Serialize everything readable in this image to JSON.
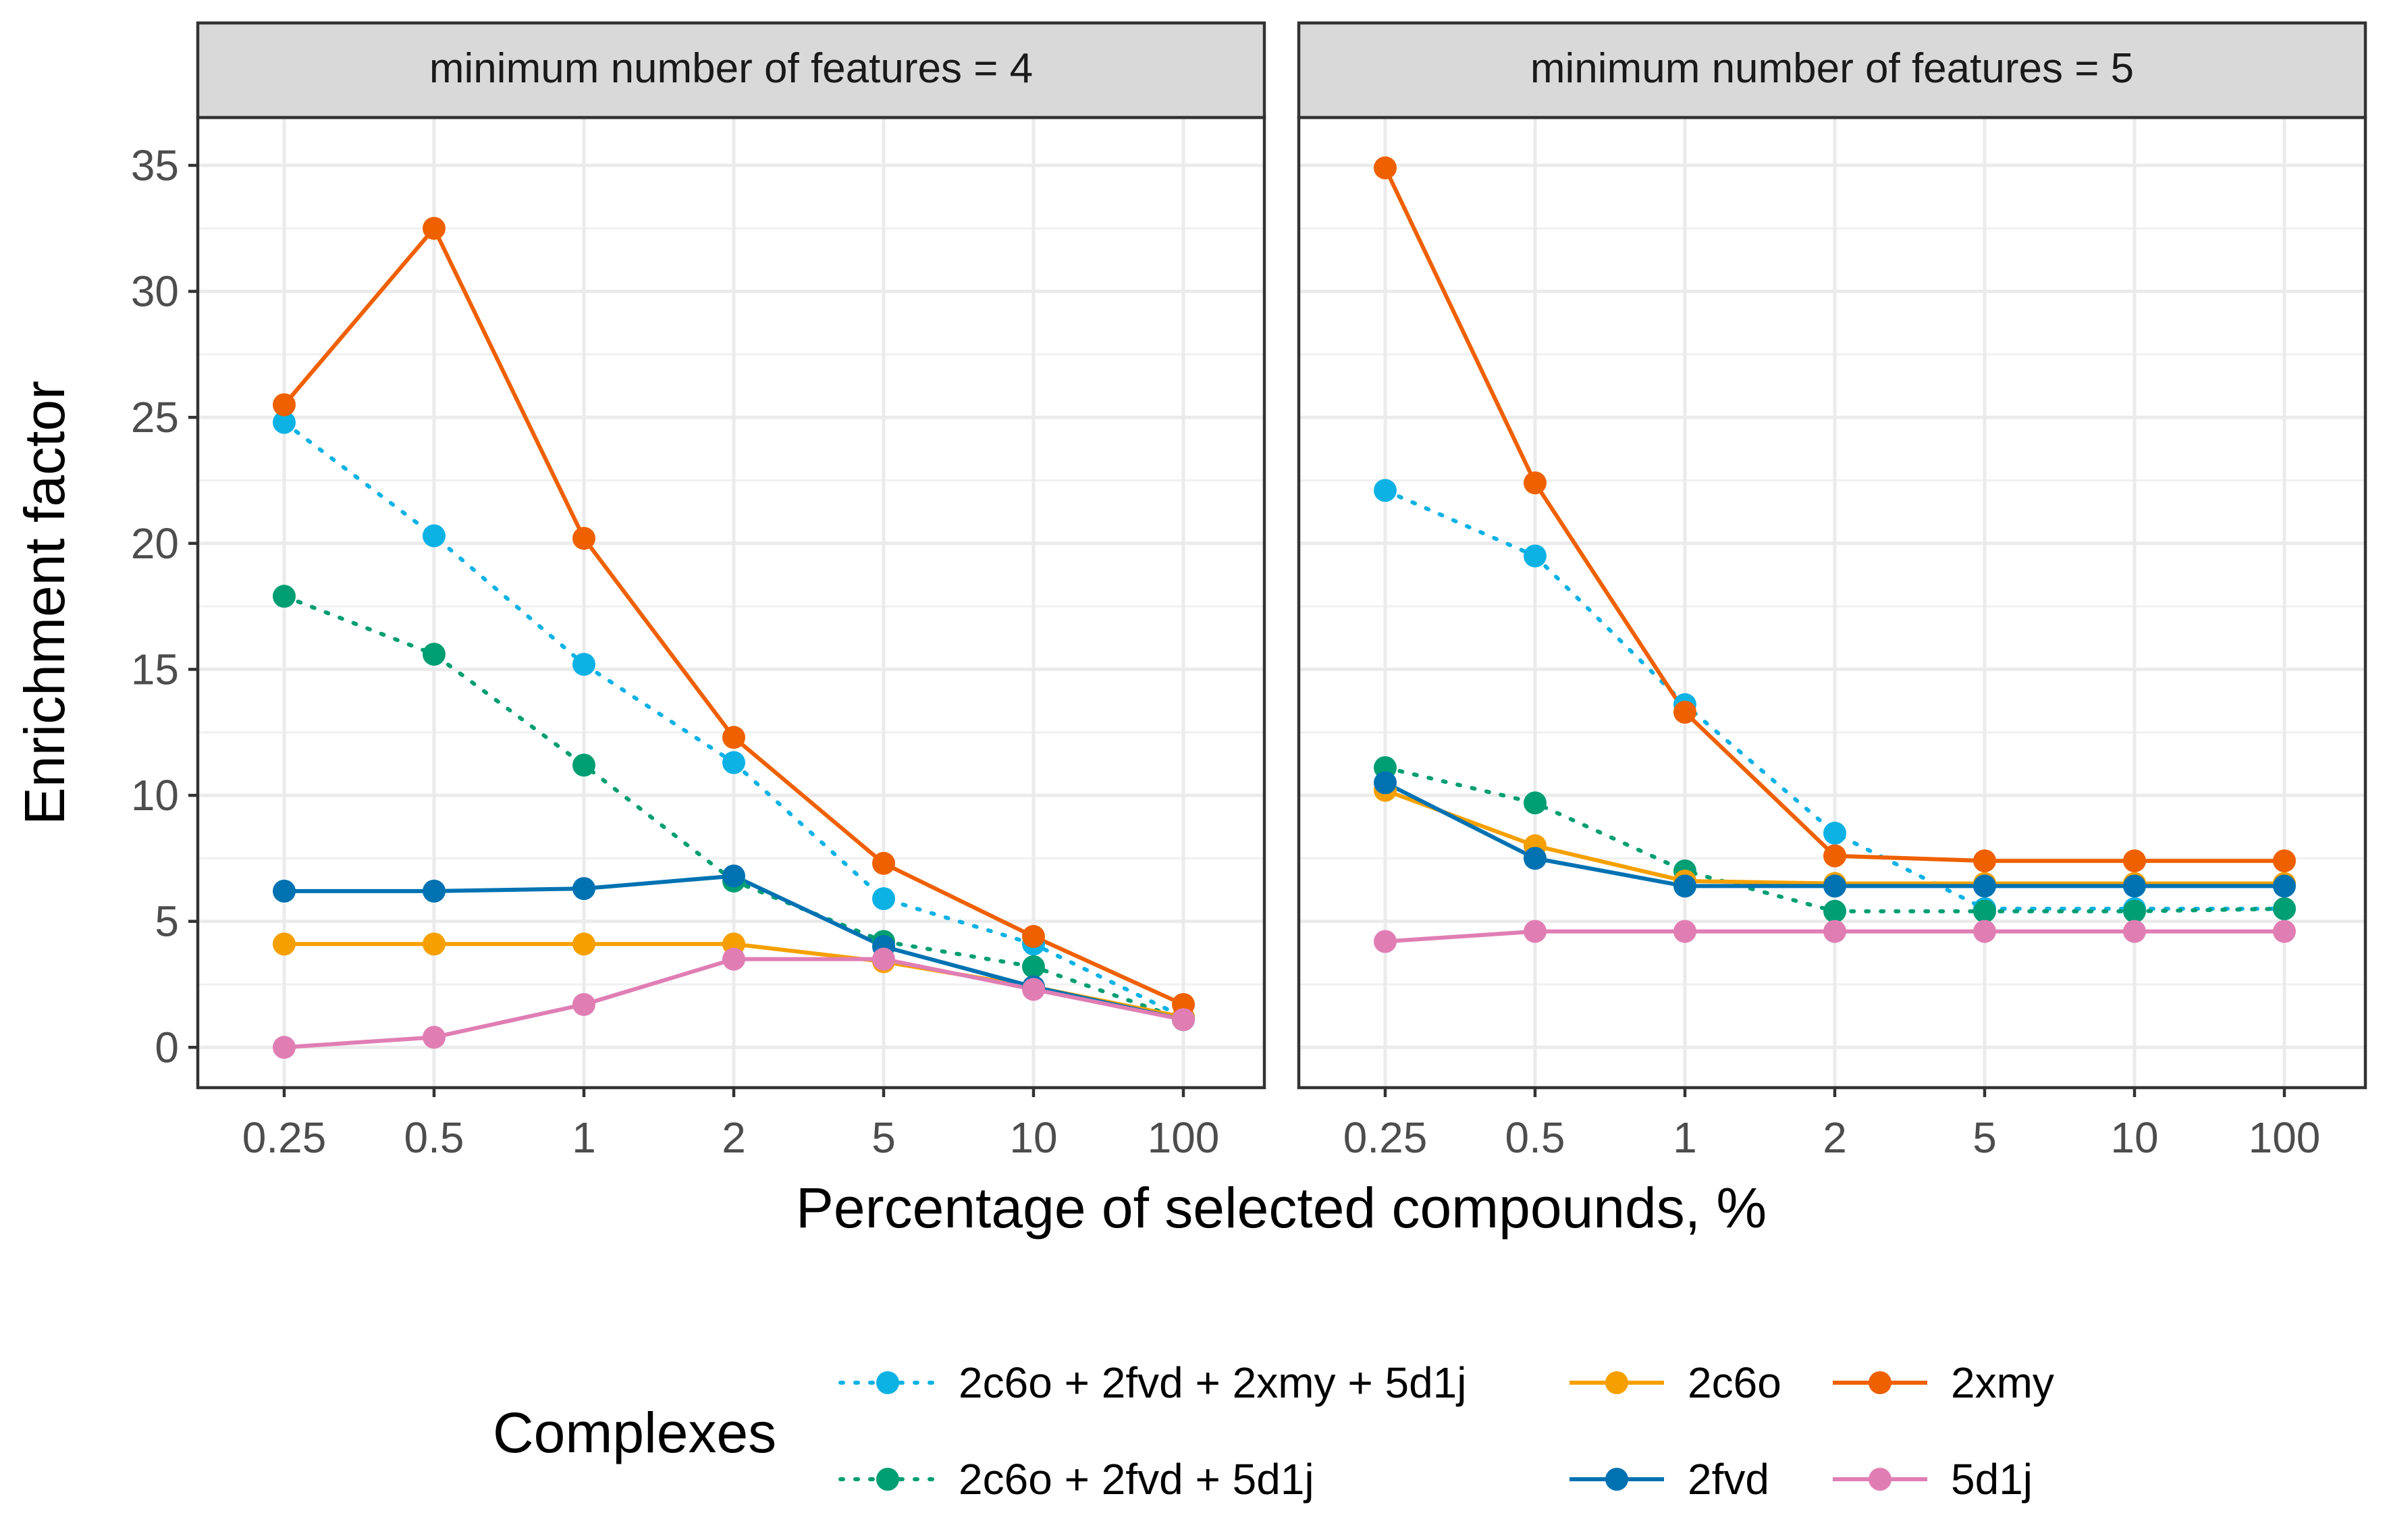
{
  "chart_data": {
    "type": "line",
    "ylabel": "Enrichment factor",
    "xlabel": "Percentage of selected compounds, %",
    "categories": [
      "0.25",
      "0.5",
      "1",
      "2",
      "5",
      "10",
      "100"
    ],
    "ylim": [
      -1.6,
      36.9
    ],
    "yticks": [
      0,
      5,
      10,
      15,
      20,
      25,
      30,
      35
    ],
    "grid": true,
    "legend": {
      "title": "Complexes",
      "position": "bottom",
      "order": [
        0,
        1,
        2,
        3,
        4,
        5
      ]
    },
    "series": [
      {
        "name": "2c6o + 2fvd + 2xmy + 5d1j",
        "color": "#0db2e5",
        "dashed": true
      },
      {
        "name": "2c6o + 2fvd + 5d1j",
        "color": "#009e73",
        "dashed": true
      },
      {
        "name": "2c6o",
        "color": "#f5a000",
        "dashed": false
      },
      {
        "name": "2fvd",
        "color": "#0072b2",
        "dashed": false
      },
      {
        "name": "2xmy",
        "color": "#ef6000",
        "dashed": false
      },
      {
        "name": "5d1j",
        "color": "#e07eb4",
        "dashed": false
      }
    ],
    "panels": [
      {
        "title": "minimum number of features = 4",
        "values": [
          [
            24.8,
            20.3,
            15.2,
            11.3,
            5.9,
            4.1,
            1.2
          ],
          [
            17.9,
            15.6,
            11.2,
            6.6,
            4.2,
            3.2,
            1.1
          ],
          [
            4.1,
            4.1,
            4.1,
            4.1,
            3.4,
            2.4,
            1.2
          ],
          [
            6.2,
            6.2,
            6.3,
            6.8,
            4.0,
            2.4,
            1.1
          ],
          [
            25.5,
            32.5,
            20.2,
            12.3,
            7.3,
            4.4,
            1.7
          ],
          [
            0.0,
            0.4,
            1.7,
            3.5,
            3.5,
            2.3,
            1.1
          ]
        ]
      },
      {
        "title": "minimum number of features = 5",
        "values": [
          [
            22.1,
            19.5,
            13.6,
            8.5,
            5.5,
            5.5,
            5.5
          ],
          [
            11.1,
            9.7,
            7.0,
            5.4,
            5.4,
            5.4,
            5.5
          ],
          [
            10.2,
            8.0,
            6.6,
            6.5,
            6.5,
            6.5,
            6.5
          ],
          [
            10.5,
            7.5,
            6.4,
            6.4,
            6.4,
            6.4,
            6.4
          ],
          [
            34.9,
            22.4,
            13.3,
            7.6,
            7.4,
            7.4,
            7.4
          ],
          [
            4.2,
            4.6,
            4.6,
            4.6,
            4.6,
            4.6,
            4.6
          ]
        ]
      }
    ]
  }
}
